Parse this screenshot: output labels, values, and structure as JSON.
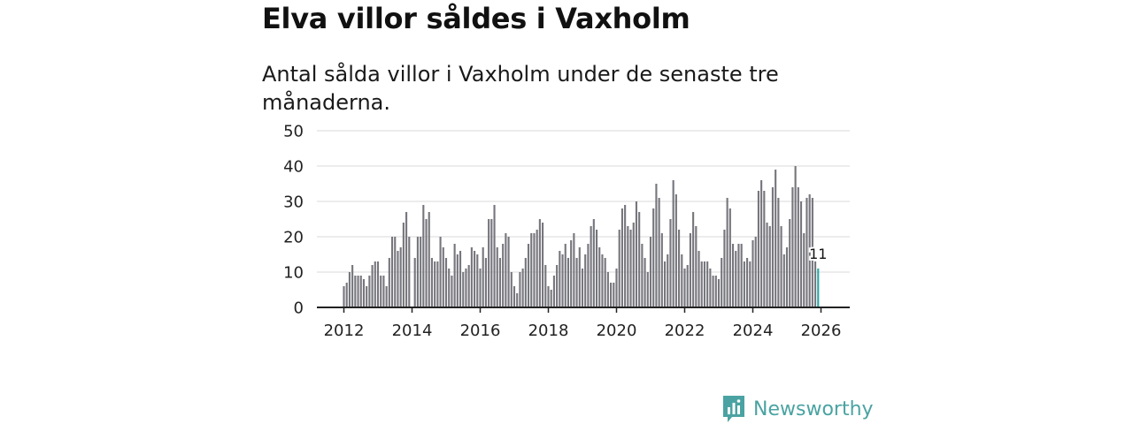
{
  "title": "Elva villor såldes i Vaxholm",
  "subtitle": "Antal sålda villor i Vaxholm under de senaste tre månaderna.",
  "logo_text": "Newsworthy",
  "colors": {
    "bar": "#76767d",
    "highlight": "#2aa8a6",
    "grid": "#d9d9d9",
    "axis": "#222222",
    "logo": "#4aa3a2"
  },
  "chart_data": {
    "type": "bar",
    "title": "Elva villor såldes i Vaxholm",
    "ylabel": "",
    "xlabel": "",
    "ylim": [
      0,
      50
    ],
    "yticks": [
      0,
      10,
      20,
      30,
      40,
      50
    ],
    "xticks": [
      "2012",
      "2014",
      "2016",
      "2018",
      "2020",
      "2022",
      "2024",
      "2026"
    ],
    "start": "2012-01",
    "end": "2026-01",
    "highlight_label": "11",
    "values": [
      6,
      7,
      10,
      12,
      9,
      9,
      9,
      8,
      6,
      9,
      12,
      13,
      13,
      9,
      9,
      6,
      14,
      20,
      20,
      16,
      17,
      24,
      27,
      20,
      0,
      14,
      20,
      20,
      29,
      25,
      27,
      14,
      13,
      13,
      20,
      17,
      14,
      11,
      9,
      18,
      15,
      16,
      10,
      11,
      12,
      17,
      16,
      15,
      11,
      17,
      14,
      25,
      25,
      29,
      17,
      14,
      18,
      21,
      20,
      10,
      6,
      4,
      10,
      11,
      14,
      18,
      21,
      21,
      22,
      25,
      24,
      12,
      6,
      5,
      9,
      12,
      16,
      15,
      18,
      14,
      19,
      21,
      14,
      17,
      11,
      15,
      18,
      23,
      25,
      22,
      17,
      15,
      14,
      10,
      7,
      7,
      11,
      22,
      28,
      29,
      23,
      22,
      24,
      30,
      27,
      18,
      14,
      10,
      20,
      28,
      35,
      31,
      21,
      13,
      15,
      25,
      36,
      32,
      22,
      15,
      11,
      12,
      21,
      27,
      23,
      16,
      13,
      13,
      13,
      11,
      9,
      9,
      8,
      14,
      22,
      31,
      28,
      18,
      16,
      18,
      18,
      13,
      14,
      13,
      19,
      20,
      33,
      36,
      33,
      24,
      23,
      34,
      39,
      31,
      23,
      15,
      17,
      25,
      34,
      40,
      34,
      30,
      21,
      31,
      32,
      31,
      13,
      11
    ]
  }
}
